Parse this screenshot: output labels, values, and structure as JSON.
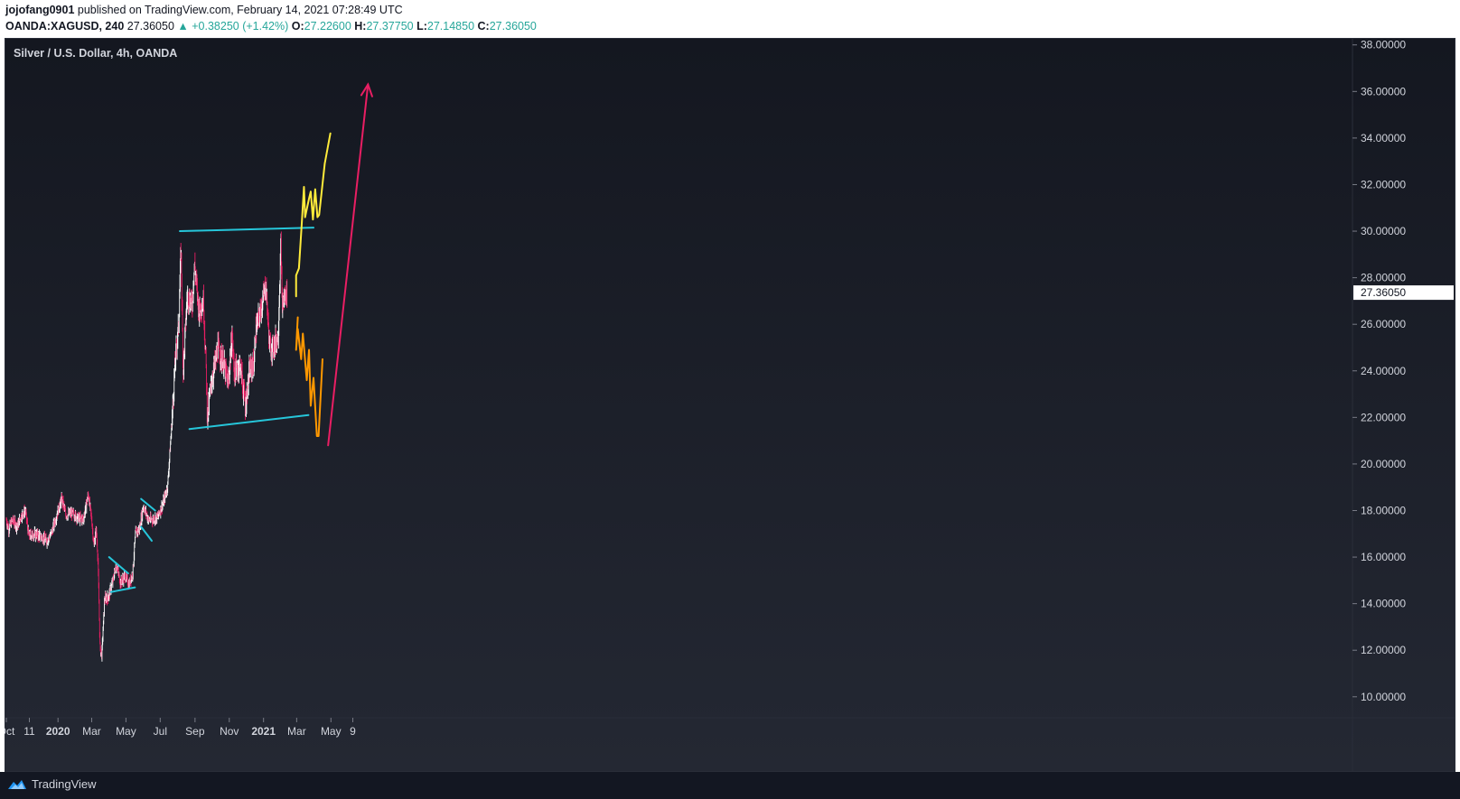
{
  "header": {
    "author": "jojofang0901",
    "publish_text": "published on TradingView.com, February 14, 2021 07:28:49 UTC",
    "symbol": "OANDA:XAGUSD, 240",
    "last": "27.36050",
    "change": "▲ +0.38250 (+1.42%)",
    "o_label": "O:",
    "o_value": "27.22600",
    "h_label": "H:",
    "h_value": "27.37750",
    "l_label": "L:",
    "l_value": "27.14850",
    "c_label": "C:",
    "c_value": "27.36050"
  },
  "footer": {
    "brand": "TradingView",
    "logo_icon": "tradingview-logo-icon"
  },
  "colors": {
    "up": "#26a69a",
    "bar_up": "#ffffff",
    "bar_down": "#e91e63",
    "channel": "#26c6da",
    "yellow": "#ffeb3b",
    "orange": "#ff9800",
    "arrow": "#e91e63",
    "price_tag_bg": "#ffffff"
  },
  "chart_data": {
    "type": "candlestick",
    "title": "Silver / U.S. Dollar, 4h, OANDA",
    "ylim": [
      9.1,
      38.3
    ],
    "y_ticks": [
      "10.00000",
      "12.00000",
      "14.00000",
      "16.00000",
      "18.00000",
      "20.00000",
      "22.00000",
      "24.00000",
      "26.00000",
      "28.00000",
      "30.00000",
      "32.00000",
      "34.00000",
      "36.00000",
      "38.00000"
    ],
    "y_tick_values": [
      10,
      12,
      14,
      16,
      18,
      20,
      22,
      24,
      26,
      28,
      30,
      32,
      34,
      36,
      38
    ],
    "x_ticks": [
      "Oct",
      "11",
      "2020",
      "Mar",
      "May",
      "Jul",
      "Sep",
      "Nov",
      "2021",
      "Mar",
      "May",
      "9"
    ],
    "x_tick_bold": [
      false,
      false,
      true,
      false,
      false,
      false,
      false,
      false,
      true,
      false,
      false,
      false
    ],
    "x_tick_dates": [
      "2019-10-01",
      "2019-11-11",
      "2020-01-01",
      "2020-03-01",
      "2020-05-01",
      "2020-07-01",
      "2020-09-01",
      "2020-11-01",
      "2021-01-01",
      "2021-03-01",
      "2021-05-01",
      "2021-06-09"
    ],
    "last_price": "27.36050",
    "last_price_value": 27.3605,
    "price_path": [
      [
        "2019-10-01",
        17.6
      ],
      [
        "2019-10-05",
        17.2
      ],
      [
        "2019-10-12",
        17.6
      ],
      [
        "2019-10-20",
        17.3
      ],
      [
        "2019-10-28",
        17.8
      ],
      [
        "2019-11-04",
        18.0
      ],
      [
        "2019-11-10",
        16.9
      ],
      [
        "2019-11-20",
        17.0
      ],
      [
        "2019-12-01",
        16.9
      ],
      [
        "2019-12-12",
        16.7
      ],
      [
        "2019-12-20",
        17.0
      ],
      [
        "2019-12-31",
        17.9
      ],
      [
        "2020-01-08",
        18.5
      ],
      [
        "2020-01-15",
        17.8
      ],
      [
        "2020-01-25",
        17.9
      ],
      [
        "2020-02-05",
        17.7
      ],
      [
        "2020-02-15",
        17.6
      ],
      [
        "2020-02-24",
        18.7
      ],
      [
        "2020-03-01",
        17.6
      ],
      [
        "2020-03-05",
        16.5
      ],
      [
        "2020-03-09",
        17.2
      ],
      [
        "2020-03-12",
        16.0
      ],
      [
        "2020-03-16",
        12.0
      ],
      [
        "2020-03-19",
        11.8
      ],
      [
        "2020-03-24",
        14.2
      ],
      [
        "2020-03-31",
        14.3
      ],
      [
        "2020-04-08",
        15.0
      ],
      [
        "2020-04-14",
        15.7
      ],
      [
        "2020-04-21",
        14.9
      ],
      [
        "2020-04-30",
        15.2
      ],
      [
        "2020-05-06",
        14.8
      ],
      [
        "2020-05-13",
        15.3
      ],
      [
        "2020-05-18",
        17.0
      ],
      [
        "2020-05-25",
        17.2
      ],
      [
        "2020-06-01",
        18.2
      ],
      [
        "2020-06-10",
        17.6
      ],
      [
        "2020-06-17",
        17.6
      ],
      [
        "2020-06-26",
        17.7
      ],
      [
        "2020-07-06",
        18.3
      ],
      [
        "2020-07-14",
        19.0
      ],
      [
        "2020-07-21",
        21.5
      ],
      [
        "2020-07-28",
        24.5
      ],
      [
        "2020-08-03",
        26.0
      ],
      [
        "2020-08-07",
        29.4
      ],
      [
        "2020-08-11",
        24.0
      ],
      [
        "2020-08-18",
        27.2
      ],
      [
        "2020-08-27",
        26.9
      ],
      [
        "2020-08-31",
        28.6
      ],
      [
        "2020-09-08",
        26.6
      ],
      [
        "2020-09-16",
        27.0
      ],
      [
        "2020-09-21",
        24.0
      ],
      [
        "2020-09-23",
        22.0
      ],
      [
        "2020-10-01",
        23.6
      ],
      [
        "2020-10-12",
        25.0
      ],
      [
        "2020-10-22",
        24.3
      ],
      [
        "2020-10-30",
        23.4
      ],
      [
        "2020-11-06",
        25.5
      ],
      [
        "2020-11-10",
        23.9
      ],
      [
        "2020-11-20",
        24.3
      ],
      [
        "2020-11-30",
        22.5
      ],
      [
        "2020-12-07",
        24.0
      ],
      [
        "2020-12-15",
        24.3
      ],
      [
        "2020-12-18",
        25.7
      ],
      [
        "2020-12-28",
        26.7
      ],
      [
        "2021-01-05",
        27.7
      ],
      [
        "2021-01-12",
        25.0
      ],
      [
        "2021-01-18",
        25.0
      ],
      [
        "2021-01-27",
        25.5
      ],
      [
        "2021-02-01",
        29.5
      ],
      [
        "2021-02-03",
        26.8
      ],
      [
        "2021-02-08",
        27.2
      ],
      [
        "2021-02-12",
        27.36
      ]
    ],
    "annotations": {
      "channel_top": [
        [
          "2020-08-05",
          30.0
        ],
        [
          "2021-03-31",
          30.15
        ]
      ],
      "channel_bottom": [
        [
          "2020-08-22",
          21.5
        ],
        [
          "2021-03-22",
          22.1
        ]
      ],
      "wedge_top": [
        [
          "2020-04-01",
          16.0
        ],
        [
          "2020-05-05",
          15.3
        ]
      ],
      "wedge_bottom": [
        [
          "2020-04-04",
          14.5
        ],
        [
          "2020-05-17",
          14.7
        ]
      ],
      "flag_top": [
        [
          "2020-05-28",
          18.5
        ],
        [
          "2020-06-22",
          18.0
        ]
      ],
      "flag_bottom": [
        [
          "2020-05-28",
          17.3
        ],
        [
          "2020-06-16",
          16.7
        ]
      ],
      "yellow_path": [
        [
          "2021-02-28",
          27.2
        ],
        [
          "2021-02-28",
          28.1
        ],
        [
          "2021-03-05",
          28.4
        ],
        [
          "2021-03-10",
          30.3
        ],
        [
          "2021-03-14",
          31.9
        ],
        [
          "2021-03-16",
          30.6
        ],
        [
          "2021-03-23",
          31.4
        ],
        [
          "2021-03-26",
          31.7
        ],
        [
          "2021-03-30",
          30.5
        ],
        [
          "2021-04-03",
          31.8
        ],
        [
          "2021-04-07",
          30.6
        ],
        [
          "2021-04-10",
          30.7
        ],
        [
          "2021-04-20",
          32.9
        ],
        [
          "2021-04-30",
          34.2
        ]
      ],
      "orange_path": [
        [
          "2021-03-03",
          26.3
        ],
        [
          "2021-02-28",
          24.9
        ],
        [
          "2021-03-03",
          25.8
        ],
        [
          "2021-03-09",
          24.5
        ],
        [
          "2021-03-12",
          25.6
        ],
        [
          "2021-03-19",
          23.6
        ],
        [
          "2021-03-23",
          24.9
        ],
        [
          "2021-03-26",
          22.5
        ],
        [
          "2021-03-31",
          23.7
        ],
        [
          "2021-04-06",
          21.2
        ],
        [
          "2021-04-09",
          21.2
        ],
        [
          "2021-04-16",
          24.5
        ]
      ],
      "arrow": [
        [
          "2021-04-26",
          20.8
        ],
        [
          "2021-07-06",
          36.3
        ]
      ]
    },
    "grid": false
  }
}
